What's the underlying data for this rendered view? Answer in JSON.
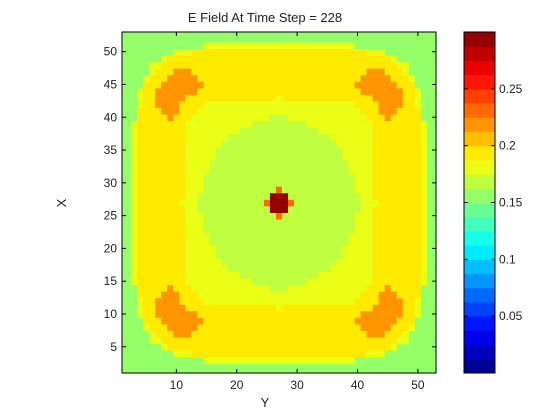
{
  "chart_data": {
    "type": "heatmap",
    "title": "E Field At Time Step = 228",
    "xlabel": "Y",
    "ylabel": "X",
    "xlim": [
      1,
      53
    ],
    "ylim": [
      1,
      53
    ],
    "x_ticks": [
      10,
      20,
      30,
      40,
      50
    ],
    "y_ticks": [
      5,
      10,
      15,
      20,
      25,
      30,
      35,
      40,
      45,
      50
    ],
    "grid": false,
    "colormap": "jet",
    "colorbar": {
      "range": [
        0.0,
        0.3
      ],
      "ticks": [
        0.05,
        0.1,
        0.15,
        0.2,
        0.25
      ],
      "levels": 24
    },
    "field": {
      "description_values": {
        "center_peak": 0.29,
        "inner_plateau": 0.165,
        "inner_ring": 0.175,
        "bright_ring": 0.19,
        "corner_hotspots": 0.22,
        "outer_band": 0.175,
        "boundary": 0.16
      }
    }
  }
}
